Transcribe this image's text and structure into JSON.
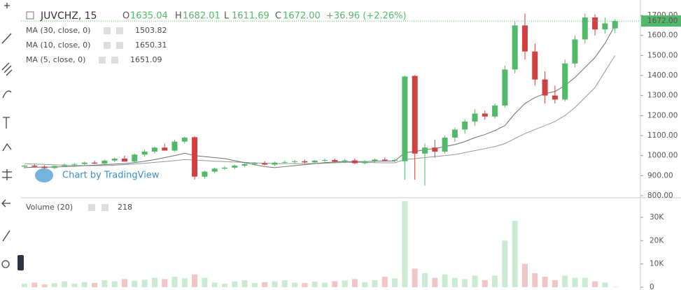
{
  "chart_data": {
    "type": "candlestick",
    "title": "JUVCHZ, 15",
    "ohlc_labels": [
      "O",
      "H",
      "L",
      "C"
    ],
    "ohlc_values": [
      "1635.04",
      "1682.01",
      "1611.69",
      "1672.00"
    ],
    "change": "+36.96 (+2.26%)",
    "last_price_label": "1672.00",
    "last_price": 1672,
    "watermark": "Chart by TradingView",
    "up_color": "#53b96a",
    "down_color": "#d0413f",
    "candles": {
      "open": [
        945,
        950,
        945,
        938,
        948,
        955,
        958,
        965,
        960,
        975,
        985,
        970,
        1005,
        1020,
        1040,
        1025,
        1070,
        1092,
        895,
        920,
        935,
        940,
        950,
        958,
        962,
        955,
        965,
        968,
        972,
        966,
        975,
        978,
        970,
        976,
        962,
        972,
        980,
        975,
        972,
        1398,
        1010,
        1040,
        1020,
        1090,
        1130,
        1170,
        1210,
        1195,
        1250,
        1430,
        1650,
        1520,
        1380,
        1300,
        1280,
        1460,
        1580,
        1690,
        1630,
        1635.04
      ],
      "high": [
        955,
        958,
        952,
        950,
        960,
        962,
        970,
        975,
        980,
        990,
        1000,
        1010,
        1030,
        1045,
        1060,
        1080,
        1095,
        1098,
        925,
        940,
        948,
        955,
        962,
        968,
        972,
        970,
        975,
        978,
        980,
        978,
        985,
        985,
        982,
        985,
        978,
        985,
        990,
        985,
        1400,
        1402,
        1060,
        1080,
        1100,
        1140,
        1180,
        1230,
        1225,
        1260,
        1450,
        1670,
        1710,
        1560,
        1420,
        1350,
        1480,
        1600,
        1710,
        1705,
        1690,
        1682.01
      ],
      "low": [
        935,
        940,
        930,
        932,
        944,
        948,
        952,
        958,
        955,
        968,
        975,
        965,
        995,
        1010,
        1030,
        1020,
        1060,
        880,
        885,
        912,
        928,
        932,
        942,
        950,
        950,
        948,
        958,
        960,
        962,
        960,
        968,
        965,
        962,
        958,
        955,
        965,
        972,
        968,
        880,
        880,
        850,
        990,
        1010,
        1070,
        1110,
        1150,
        1180,
        1185,
        1240,
        1410,
        1480,
        1350,
        1260,
        1260,
        1270,
        1440,
        1560,
        1600,
        1610,
        1611.69
      ],
      "close": [
        950,
        945,
        938,
        948,
        955,
        958,
        965,
        960,
        975,
        985,
        970,
        1005,
        1020,
        1040,
        1025,
        1070,
        1090,
        895,
        920,
        935,
        940,
        950,
        958,
        962,
        955,
        965,
        968,
        972,
        966,
        975,
        978,
        970,
        976,
        962,
        972,
        980,
        975,
        978,
        1395,
        1010,
        1040,
        1020,
        1090,
        1130,
        1170,
        1210,
        1195,
        1250,
        1430,
        1650,
        1520,
        1380,
        1300,
        1280,
        1460,
        1580,
        1690,
        1630,
        1660,
        1672
      ]
    },
    "ma": [
      {
        "name": "MA (30, close, 0)",
        "value_label": "1503.82",
        "color": "#8e9c94",
        "label_color": "#4a4a4a",
        "values": [
          960,
          958,
          956,
          954,
          952,
          950,
          950,
          950,
          950,
          952,
          955,
          958,
          962,
          966,
          970,
          975,
          980,
          978,
          975,
          972,
          970,
          968,
          966,
          964,
          962,
          960,
          960,
          960,
          960,
          960,
          962,
          964,
          966,
          966,
          966,
          965,
          964,
          964,
          980,
          985,
          990,
          995,
          1000,
          1005,
          1015,
          1025,
          1035,
          1045,
          1060,
          1085,
          1110,
          1130,
          1150,
          1170,
          1200,
          1240,
          1290,
          1340,
          1420,
          1500
        ]
      },
      {
        "name": "MA (10, close, 0)",
        "value_label": "1650.31",
        "color": "#6f6f6f",
        "label_color": "#4a4a4a",
        "values": [
          940,
          942,
          942,
          943,
          945,
          947,
          950,
          952,
          955,
          958,
          960,
          965,
          972,
          980,
          990,
          1000,
          1012,
          1000,
          995,
          990,
          985,
          975,
          965,
          955,
          945,
          940,
          945,
          950,
          955,
          960,
          965,
          968,
          970,
          970,
          970,
          972,
          973,
          973,
          1015,
          1020,
          1030,
          1035,
          1045,
          1055,
          1070,
          1090,
          1105,
          1125,
          1150,
          1210,
          1260,
          1290,
          1310,
          1320,
          1350,
          1390,
          1440,
          1490,
          1560,
          1650
        ]
      },
      {
        "name": "MA (5, close, 0)",
        "value_label": "1651.09",
        "color": "#7f2460",
        "label_color": "#7f2460",
        "values": null
      }
    ],
    "ylim": [
      793,
      1777
    ],
    "yticks": [
      {
        "value": 800,
        "label": "800.00"
      },
      {
        "value": 900,
        "label": "900.00"
      },
      {
        "value": 1000,
        "label": "1000.00"
      },
      {
        "value": 1100,
        "label": "1100.00"
      },
      {
        "value": 1200,
        "label": "1200.00"
      },
      {
        "value": 1300,
        "label": "1300.00"
      },
      {
        "value": 1400,
        "label": "1400.00"
      },
      {
        "value": 1500,
        "label": "1500.00"
      },
      {
        "value": 1600,
        "label": "1600.00"
      },
      {
        "value": 1700,
        "label": "1700.00"
      }
    ],
    "volume": {
      "name": "Volume (20)",
      "value_label": "218",
      "values": [
        1500,
        2000,
        1200,
        1800,
        2500,
        1500,
        2200,
        1800,
        3000,
        2500,
        3500,
        2800,
        3200,
        4000,
        3500,
        4500,
        3800,
        5500,
        4000,
        2000,
        1500,
        2500,
        3000,
        1800,
        2200,
        2600,
        3000,
        2000,
        1800,
        2400,
        2000,
        2600,
        2800,
        3500,
        2200,
        3000,
        4500,
        3800,
        37000,
        8000,
        6000,
        4000,
        5500,
        4000,
        3500,
        5000,
        3000,
        5000,
        20000,
        28500,
        10000,
        6000,
        4500,
        3000,
        5000,
        4000,
        4000,
        2500,
        2000,
        218
      ],
      "ylim": [
        0,
        38100
      ],
      "yticks": [
        0,
        {
          "value": 10000,
          "label": "10K"
        },
        {
          "value": 20000,
          "label": "20K"
        },
        {
          "value": 30000,
          "label": "30K"
        }
      ]
    }
  }
}
